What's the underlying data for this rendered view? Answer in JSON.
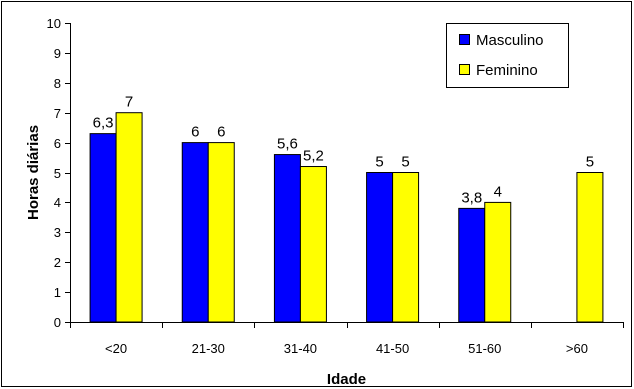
{
  "chart_data": {
    "type": "bar",
    "categories": [
      "<20",
      "21-30",
      "31-40",
      "41-50",
      "51-60",
      ">60"
    ],
    "series": [
      {
        "name": "Masculino",
        "color": "#0000FF",
        "values": [
          6.3,
          6,
          5.6,
          5,
          3.8,
          null
        ],
        "labels": [
          "6,3",
          "6",
          "5,6",
          "5",
          "3,8",
          ""
        ]
      },
      {
        "name": "Feminino",
        "color": "#FFFF00",
        "values": [
          7,
          6,
          5.2,
          5,
          4,
          5
        ],
        "labels": [
          "7",
          "6",
          "5,2",
          "5",
          "4",
          "5"
        ]
      }
    ],
    "xlabel": "Idade",
    "ylabel": "Horas diárias",
    "ylim": [
      0,
      10
    ],
    "yticks": [
      "0",
      "1",
      "2",
      "3",
      "4",
      "5",
      "6",
      "7",
      "8",
      "9",
      "10"
    ],
    "grid": false,
    "legend": "top-right"
  }
}
